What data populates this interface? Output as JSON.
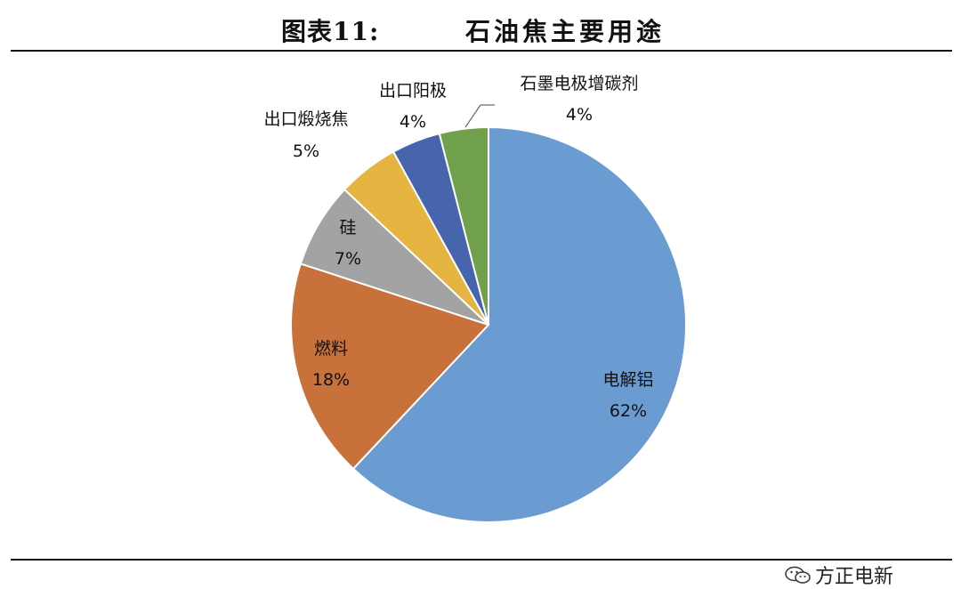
{
  "figure": {
    "prefix": "图表11:",
    "title": "石油焦主要用途"
  },
  "watermark": "方正电新",
  "chart_data": {
    "type": "pie",
    "title": "石油焦主要用途",
    "start_angle_deg": 0,
    "direction": "clockwise",
    "slices": [
      {
        "label": "电解铝",
        "value": 62,
        "percent": "62%",
        "color": "#6a9bd1"
      },
      {
        "label": "燃料",
        "value": 18,
        "percent": "18%",
        "color": "#c9713a"
      },
      {
        "label": "硅",
        "value": 7,
        "percent": "7%",
        "color": "#a3a3a3"
      },
      {
        "label": "出口煅烧焦",
        "value": 5,
        "percent": "5%",
        "color": "#e6b440"
      },
      {
        "label": "出口阳极",
        "value": 4,
        "percent": "4%",
        "color": "#4665ad"
      },
      {
        "label": "石墨电极增碳剂",
        "value": 4,
        "percent": "4%",
        "color": "#70a04b"
      }
    ]
  }
}
